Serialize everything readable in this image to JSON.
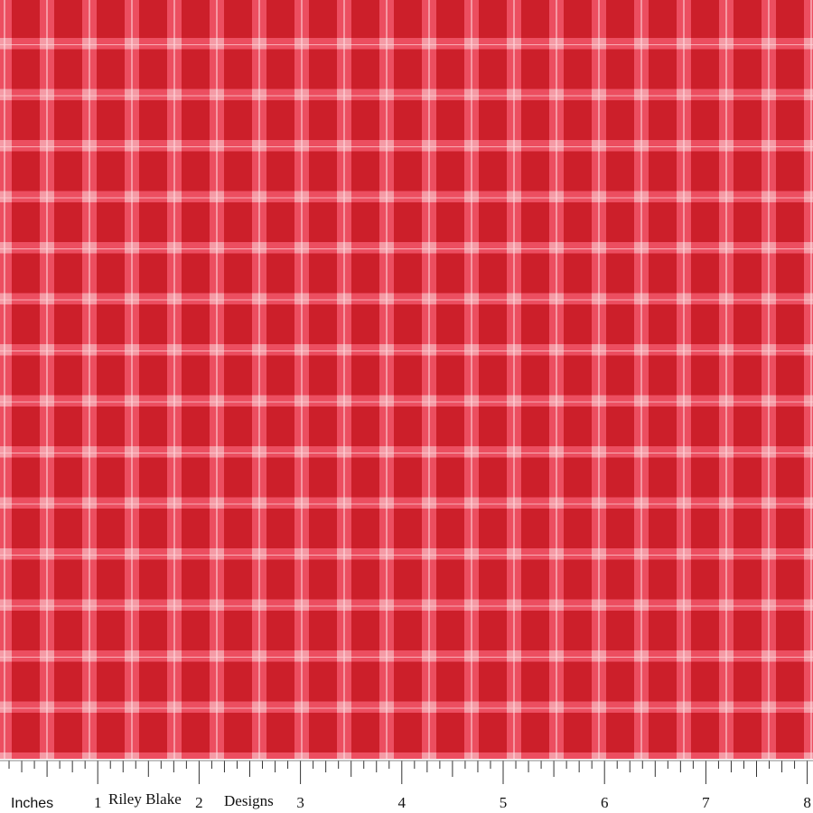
{
  "ruler": {
    "unit_label": "Inches",
    "brand": "Riley Blake",
    "brand_suffix": "Designs",
    "numbers": [
      1,
      2,
      3,
      4,
      5,
      6,
      7,
      8
    ]
  }
}
